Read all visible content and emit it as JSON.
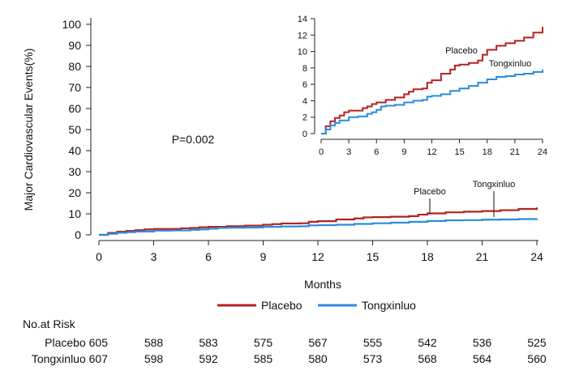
{
  "chart_data": [
    {
      "id": "main",
      "type": "line",
      "title": "",
      "xlabel": "Months",
      "ylabel": "Major Cardiovascular Events(%)",
      "xlim": [
        0,
        24
      ],
      "ylim": [
        0,
        100
      ],
      "xticks": [
        0,
        3,
        6,
        9,
        12,
        15,
        18,
        21,
        24
      ],
      "yticks": [
        0,
        10,
        20,
        30,
        40,
        50,
        60,
        70,
        80,
        90,
        100
      ],
      "annotation": "P=0.002",
      "series": [
        {
          "name": "Placebo",
          "color": "#b22222",
          "points": [
            [
              0,
              0
            ],
            [
              0.5,
              0.9
            ],
            [
              1,
              1.5
            ],
            [
              1.5,
              1.9
            ],
            [
              2,
              2.2
            ],
            [
              2.5,
              2.6
            ],
            [
              3,
              2.8
            ],
            [
              4,
              2.8
            ],
            [
              4.5,
              3.1
            ],
            [
              5,
              3.3
            ],
            [
              5.5,
              3.6
            ],
            [
              6,
              3.8
            ],
            [
              7,
              4.1
            ],
            [
              8,
              4.4
            ],
            [
              9,
              4.8
            ],
            [
              9.5,
              5.1
            ],
            [
              10,
              5.4
            ],
            [
              11,
              5.5
            ],
            [
              11.5,
              6.2
            ],
            [
              12,
              6.5
            ],
            [
              13,
              7.3
            ],
            [
              14,
              7.8
            ],
            [
              14.5,
              8.3
            ],
            [
              15,
              8.4
            ],
            [
              16,
              8.6
            ],
            [
              17,
              8.9
            ],
            [
              17.5,
              9.6
            ],
            [
              18,
              10.2
            ],
            [
              19,
              10.7
            ],
            [
              20,
              11.0
            ],
            [
              21,
              11.3
            ],
            [
              22,
              11.7
            ],
            [
              23,
              12.3
            ],
            [
              24,
              13.0
            ]
          ]
        },
        {
          "name": "Tongxinluo",
          "color": "#2a8be0",
          "points": [
            [
              0,
              0
            ],
            [
              0.5,
              0.5
            ],
            [
              1,
              1.0
            ],
            [
              1.5,
              1.3
            ],
            [
              2,
              1.6
            ],
            [
              3,
              2.0
            ],
            [
              4,
              2.1
            ],
            [
              5,
              2.4
            ],
            [
              5.5,
              2.6
            ],
            [
              6,
              2.9
            ],
            [
              6.5,
              3.3
            ],
            [
              7,
              3.4
            ],
            [
              8,
              3.5
            ],
            [
              9,
              3.8
            ],
            [
              10,
              4.0
            ],
            [
              11,
              4.1
            ],
            [
              11.5,
              4.5
            ],
            [
              12,
              4.6
            ],
            [
              13,
              4.8
            ],
            [
              14,
              5.2
            ],
            [
              15,
              5.5
            ],
            [
              16,
              5.8
            ],
            [
              17,
              6.2
            ],
            [
              18,
              6.6
            ],
            [
              19,
              6.9
            ],
            [
              20,
              7.0
            ],
            [
              21,
              7.2
            ],
            [
              22,
              7.3
            ],
            [
              23,
              7.5
            ],
            [
              24,
              7.8
            ]
          ]
        }
      ],
      "curve_labels": [
        "Placebo",
        "Tongxinluo"
      ],
      "legend": {
        "position": "bottom-center",
        "entries": [
          "Placebo",
          "Tongxinluo"
        ]
      }
    },
    {
      "id": "inset",
      "type": "line",
      "xlim": [
        0,
        24
      ],
      "ylim": [
        0,
        14
      ],
      "xticks": [
        0,
        3,
        6,
        9,
        12,
        15,
        18,
        21,
        24
      ],
      "yticks": [
        0,
        2,
        4,
        6,
        8,
        10,
        12,
        14
      ],
      "labels": [
        "Placebo",
        "Tongxinluo"
      ],
      "series_ref": "main"
    }
  ],
  "risk_table": {
    "title": "No.at Risk",
    "rows": [
      {
        "label": "Placebo 605",
        "values": [
          "588",
          "583",
          "575",
          "567",
          "555",
          "542",
          "536",
          "525"
        ]
      },
      {
        "label": "Tongxinluo 607",
        "values": [
          "598",
          "592",
          "585",
          "580",
          "573",
          "568",
          "564",
          "560"
        ]
      }
    ]
  }
}
